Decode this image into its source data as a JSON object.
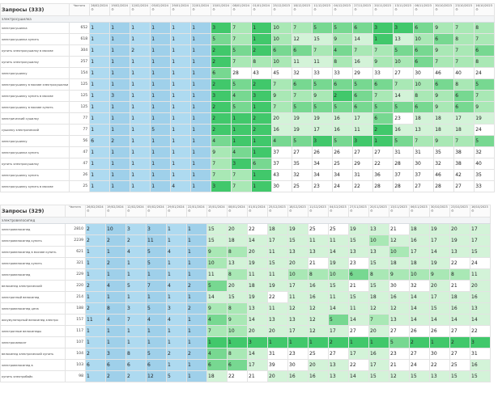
{
  "panels": [
    {
      "title": "Запросы (333)",
      "freq_header": "Частота",
      "group": "электросушилка",
      "dates": [
        "26/02/2024",
        "19/02/2024",
        "12/02/2024",
        "05/02/2024",
        "29/01/2024",
        "22/01/2024",
        "15/01/2024",
        "08/01/2024",
        "01/01/2024",
        "25/12/2023",
        "18/12/2023",
        "11/12/2023",
        "04/12/2023",
        "27/11/2023",
        "20/11/2023",
        "13/11/2023",
        "06/11/2023",
        "30/10/2023",
        "23/10/2023",
        "16/10/2023"
      ],
      "rows": [
        {
          "q": "электросушилка",
          "f": "652",
          "v": [
            "1",
            "1",
            "1",
            "1",
            "1",
            "1",
            "3",
            "7",
            "1",
            "10",
            "7",
            "5",
            "5",
            "6",
            "3",
            "3",
            "6",
            "9",
            "7",
            "8"
          ]
        },
        {
          "q": "электросушилка купить",
          "f": "618",
          "v": [
            "1",
            "1",
            "1",
            "1",
            "1",
            "1",
            "5",
            "7",
            "1",
            "10",
            "12",
            "15",
            "9",
            "14",
            "1",
            "13",
            "10",
            "6",
            "8",
            "7"
          ]
        },
        {
          "q": "купить электросушилку в москве",
          "f": "304",
          "v": [
            "1",
            "1",
            "2",
            "1",
            "1",
            "1",
            "2",
            "5",
            "2",
            "6",
            "6",
            "7",
            "4",
            "7",
            "7",
            "5",
            "6",
            "9",
            "7",
            "6"
          ]
        },
        {
          "q": "купить электросушилку",
          "f": "257",
          "v": [
            "1",
            "1",
            "1",
            "1",
            "1",
            "1",
            "2",
            "7",
            "8",
            "10",
            "11",
            "11",
            "8",
            "16",
            "9",
            "10",
            "6",
            "7",
            "7",
            "8"
          ]
        },
        {
          "q": "электросушилку",
          "f": "154",
          "v": [
            "1",
            "1",
            "1",
            "1",
            "1",
            "1",
            "6",
            "28",
            "43",
            "45",
            "32",
            "33",
            "33",
            "29",
            "33",
            "27",
            "30",
            "46",
            "40",
            "24"
          ]
        },
        {
          "q": "электросушилку в москве электросушилки",
          "f": "125",
          "v": [
            "1",
            "1",
            "1",
            "1",
            "1",
            "1",
            "2",
            "5",
            "2",
            "7",
            "6",
            "5",
            "6",
            "5",
            "6",
            "7",
            "10",
            "6",
            "8",
            "5"
          ]
        },
        {
          "q": "электросушилку купить в москве",
          "f": "125",
          "v": [
            "1",
            "3",
            "1",
            "1",
            "1",
            "1",
            "3",
            "4",
            "3",
            "9",
            "7",
            "9",
            "2",
            "6",
            "7",
            "14",
            "8",
            "9",
            "6",
            "7"
          ]
        },
        {
          "q": "электросушилку в москве купить",
          "f": "125",
          "v": [
            "1",
            "1",
            "1",
            "1",
            "1",
            "1",
            "2",
            "5",
            "1",
            "7",
            "5",
            "5",
            "5",
            "6",
            "5",
            "5",
            "6",
            "9",
            "6",
            "9"
          ]
        },
        {
          "q": "электрический сушилку",
          "f": "77",
          "v": [
            "1",
            "1",
            "1",
            "1",
            "1",
            "1",
            "2",
            "1",
            "2",
            "20",
            "19",
            "19",
            "16",
            "17",
            "6",
            "23",
            "18",
            "18",
            "17",
            "19"
          ]
        },
        {
          "q": "сушилку электрический",
          "f": "77",
          "v": [
            "1",
            "1",
            "1",
            "5",
            "1",
            "1",
            "2",
            "1",
            "2",
            "16",
            "19",
            "17",
            "16",
            "11",
            "2",
            "16",
            "13",
            "18",
            "18",
            "24"
          ]
        },
        {
          "q": "электросушилку",
          "f": "56",
          "v": [
            "6",
            "2",
            "1",
            "1",
            "1",
            "1",
            "4",
            "1",
            "1",
            "4",
            "5",
            "3",
            "5",
            "3",
            "1",
            "5",
            "7",
            "9",
            "7",
            "5"
          ]
        },
        {
          "q": "электросушилка купить",
          "f": "47",
          "v": [
            "1",
            "1",
            "1",
            "1",
            "1",
            "1",
            "9",
            "4",
            "1",
            "37",
            "27",
            "26",
            "26",
            "27",
            "27",
            "31",
            "31",
            "35",
            "38",
            "32"
          ]
        },
        {
          "q": "купить электросушилку",
          "f": "47",
          "v": [
            "1",
            "1",
            "1",
            "1",
            "1",
            "1",
            "7",
            "3",
            "6",
            "37",
            "35",
            "34",
            "25",
            "29",
            "22",
            "28",
            "30",
            "32",
            "38",
            "40"
          ]
        },
        {
          "q": "электросушилку купить",
          "f": "26",
          "v": [
            "1",
            "1",
            "1",
            "1",
            "1",
            "1",
            "7",
            "7",
            "1",
            "43",
            "32",
            "34",
            "34",
            "31",
            "36",
            "37",
            "37",
            "46",
            "42",
            "35"
          ]
        },
        {
          "q": "электросушилку купить в москве",
          "f": "25",
          "v": [
            "1",
            "1",
            "1",
            "1",
            "4",
            "1",
            "3",
            "7",
            "1",
            "30",
            "25",
            "23",
            "24",
            "22",
            "28",
            "28",
            "27",
            "28",
            "27",
            "33"
          ]
        }
      ]
    },
    {
      "title": "Запросы (329)",
      "freq_header": "Частота",
      "group": "электровелосипед",
      "dates": [
        "26/02/2024",
        "19/02/2024",
        "12/02/2024",
        "05/02/2024",
        "29/01/2024",
        "22/01/2024",
        "15/01/2024",
        "08/01/2024",
        "01/01/2024",
        "25/12/2023",
        "18/12/2023",
        "11/12/2023",
        "04/12/2023",
        "27/11/2023",
        "20/11/2023",
        "13/11/2023",
        "06/11/2023",
        "30/10/2023",
        "23/10/2023",
        "16/10/2023"
      ],
      "rows": [
        {
          "q": "электровелосипед",
          "f": "2810",
          "v": [
            "2",
            "10",
            "3",
            "3",
            "1",
            "1",
            "15",
            "20",
            "22",
            "18",
            "19",
            "25",
            "25",
            "19",
            "13",
            "21",
            "18",
            "19",
            "20",
            "17"
          ]
        },
        {
          "q": "электровелосипед купить",
          "f": "2239",
          "v": [
            "2",
            "2",
            "2",
            "11",
            "1",
            "1",
            "15",
            "18",
            "14",
            "17",
            "15",
            "11",
            "11",
            "15",
            "10",
            "12",
            "16",
            "17",
            "19",
            "17"
          ]
        },
        {
          "q": "электровелосипед в москве купить",
          "f": "621",
          "v": [
            "1",
            "1",
            "4",
            "5",
            "4",
            "1",
            "9",
            "8",
            "20",
            "11",
            "13",
            "13",
            "14",
            "13",
            "13",
            "10",
            "17",
            "14",
            "13",
            "15"
          ]
        },
        {
          "q": "электровелосипед купить",
          "f": "321",
          "v": [
            "1",
            "2",
            "1",
            "5",
            "1",
            "1",
            "10",
            "13",
            "19",
            "15",
            "20",
            "21",
            "19",
            "23",
            "15",
            "18",
            "18",
            "19",
            "22",
            "24"
          ]
        },
        {
          "q": "электровелосипед",
          "f": "229",
          "v": [
            "1",
            "1",
            "1",
            "1",
            "1",
            "1",
            "11",
            "8",
            "11",
            "11",
            "10",
            "8",
            "10",
            "6",
            "8",
            "9",
            "10",
            "9",
            "8",
            "11"
          ]
        },
        {
          "q": "велосипед электрический",
          "f": "220",
          "v": [
            "2",
            "4",
            "5",
            "7",
            "4",
            "2",
            "5",
            "20",
            "18",
            "19",
            "17",
            "16",
            "15",
            "21",
            "15",
            "30",
            "32",
            "20",
            "21",
            "20"
          ]
        },
        {
          "q": "электронный велосипед",
          "f": "214",
          "v": [
            "1",
            "1",
            "1",
            "1",
            "1",
            "1",
            "14",
            "15",
            "19",
            "22",
            "11",
            "16",
            "11",
            "15",
            "18",
            "16",
            "14",
            "17",
            "18",
            "16"
          ]
        },
        {
          "q": "электровелосипед цена",
          "f": "188",
          "v": [
            "2",
            "8",
            "3",
            "5",
            "3",
            "2",
            "9",
            "8",
            "13",
            "11",
            "12",
            "12",
            "14",
            "11",
            "12",
            "12",
            "14",
            "15",
            "16",
            "13"
          ]
        },
        {
          "q": "аккумуляторный велосипед электро",
          "f": "157",
          "v": [
            "11",
            "4",
            "7",
            "4",
            "4",
            "1",
            "4",
            "9",
            "14",
            "13",
            "13",
            "12",
            "5",
            "14",
            "7",
            "13",
            "14",
            "14",
            "14",
            "14"
          ]
        },
        {
          "q": "электронные велосипеды",
          "f": "117",
          "v": [
            "1",
            "1",
            "1",
            "1",
            "1",
            "1",
            "7",
            "10",
            "20",
            "20",
            "17",
            "12",
            "17",
            "27",
            "20",
            "27",
            "26",
            "26",
            "27",
            "22"
          ]
        },
        {
          "q": "электросамокат",
          "f": "107",
          "v": [
            "1",
            "1",
            "1",
            "1",
            "1",
            "1",
            "1",
            "1",
            "3",
            "1",
            "1",
            "1",
            "2",
            "1",
            "1",
            "5",
            "2",
            "1",
            "2",
            "3"
          ]
        },
        {
          "q": "велосипед электрический купить",
          "f": "104",
          "v": [
            "2",
            "3",
            "8",
            "5",
            "2",
            "2",
            "4",
            "8",
            "14",
            "31",
            "23",
            "25",
            "27",
            "17",
            "16",
            "23",
            "27",
            "30",
            "27",
            "31"
          ]
        },
        {
          "q": "электровелосипед в",
          "f": "103",
          "v": [
            "6",
            "6",
            "6",
            "6",
            "1",
            "1",
            "6",
            "6",
            "17",
            "39",
            "30",
            "20",
            "13",
            "22",
            "17",
            "21",
            "24",
            "22",
            "25",
            "16"
          ]
        },
        {
          "q": "купить электробайк",
          "f": "98",
          "v": [
            "1",
            "2",
            "2",
            "12",
            "5",
            "1",
            "18",
            "22",
            "21",
            "20",
            "16",
            "16",
            "13",
            "14",
            "15",
            "12",
            "15",
            "13",
            "15",
            "15"
          ]
        }
      ]
    }
  ]
}
